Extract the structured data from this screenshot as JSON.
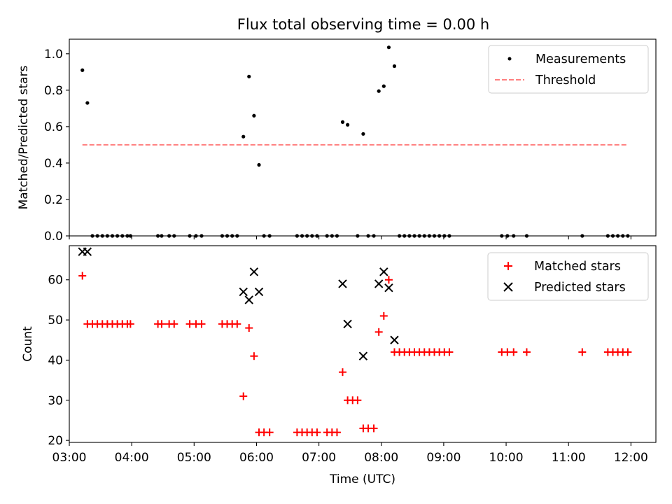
{
  "colors": {
    "measurement": "#000000",
    "threshold": "#ff7f7f",
    "matched": "#ff0000",
    "predicted": "#000000"
  },
  "chart_data": [
    {
      "type": "scatter",
      "title": "Flux total observing time = 0.00 h",
      "xlabel": "",
      "ylabel": "Matched/Predicted stars",
      "xlim": [
        3.0,
        12.4
      ],
      "ylim": [
        0.0,
        1.08
      ],
      "yticks": [
        0.0,
        0.2,
        0.4,
        0.6,
        0.8,
        1.0
      ],
      "ytick_labels": [
        "0.0",
        "0.2",
        "0.4",
        "0.6",
        "0.8",
        "1.0"
      ],
      "legend_position": "top-right",
      "legend": [
        "Measurements",
        "Threshold"
      ],
      "series": [
        {
          "name": "Measurements",
          "marker": "dot",
          "x": [
            3.21,
            3.29,
            3.37,
            3.45,
            3.53,
            3.61,
            3.69,
            3.77,
            3.85,
            3.93,
            3.98,
            4.42,
            4.48,
            4.6,
            4.68,
            4.93,
            5.03,
            5.12,
            5.45,
            5.53,
            5.61,
            5.69,
            5.79,
            5.88,
            5.96,
            6.04,
            6.12,
            6.21,
            6.65,
            6.73,
            6.81,
            6.89,
            6.97,
            7.13,
            7.21,
            7.29,
            7.38,
            7.46,
            7.62,
            7.71,
            7.79,
            7.88,
            7.96,
            8.04,
            8.12,
            8.21,
            8.29,
            8.37,
            8.45,
            8.53,
            8.61,
            8.69,
            8.77,
            8.85,
            8.93,
            9.01,
            9.09,
            9.93,
            10.02,
            10.12,
            10.33,
            11.22,
            11.63,
            11.71,
            11.79,
            11.87,
            11.95
          ],
          "y": [
            0.91,
            0.73,
            0.0,
            0.0,
            0.0,
            0.0,
            0.0,
            0.0,
            0.0,
            0.0,
            0.0,
            0.0,
            0.0,
            0.0,
            0.0,
            0.0,
            0.0,
            0.0,
            0.0,
            0.0,
            0.0,
            0.0,
            0.545,
            0.875,
            0.66,
            0.39,
            0.0,
            0.0,
            0.0,
            0.0,
            0.0,
            0.0,
            0.0,
            0.0,
            0.0,
            0.0,
            0.625,
            0.61,
            0.0,
            0.56,
            0.0,
            0.0,
            0.795,
            0.822,
            1.035,
            0.932,
            0.0,
            0.0,
            0.0,
            0.0,
            0.0,
            0.0,
            0.0,
            0.0,
            0.0,
            0.0,
            0.0,
            0.0,
            0.0,
            0.0,
            0.0,
            0.0,
            0.0,
            0.0,
            0.0,
            0.0,
            0.0
          ]
        },
        {
          "name": "Threshold",
          "marker": "dashed-line",
          "x": [
            3.21,
            11.95
          ],
          "y": [
            0.5,
            0.5
          ]
        }
      ]
    },
    {
      "type": "scatter",
      "title": "",
      "xlabel": "Time (UTC)",
      "ylabel": "Count",
      "xlim": [
        3.0,
        12.4
      ],
      "ylim": [
        19.5,
        68.5
      ],
      "xticks": [
        3,
        4,
        5,
        6,
        7,
        8,
        9,
        10,
        11,
        12
      ],
      "xtick_labels": [
        "03:00",
        "04:00",
        "05:00",
        "06:00",
        "07:00",
        "08:00",
        "09:00",
        "10:00",
        "11:00",
        "12:00"
      ],
      "yticks": [
        20,
        30,
        40,
        50,
        60
      ],
      "ytick_labels": [
        "20",
        "30",
        "40",
        "50",
        "60"
      ],
      "legend_position": "top-right",
      "legend": [
        "Matched stars",
        "Predicted stars"
      ],
      "series": [
        {
          "name": "Matched stars",
          "marker": "plus",
          "x": [
            3.21,
            3.29,
            3.37,
            3.45,
            3.53,
            3.61,
            3.69,
            3.77,
            3.85,
            3.93,
            3.98,
            4.42,
            4.48,
            4.6,
            4.68,
            4.93,
            5.03,
            5.12,
            5.45,
            5.53,
            5.61,
            5.69,
            5.79,
            5.88,
            5.96,
            6.04,
            6.12,
            6.21,
            6.65,
            6.73,
            6.81,
            6.89,
            6.97,
            7.13,
            7.21,
            7.29,
            7.38,
            7.46,
            7.54,
            7.62,
            7.71,
            7.79,
            7.88,
            7.96,
            8.04,
            8.12,
            8.21,
            8.29,
            8.37,
            8.45,
            8.53,
            8.61,
            8.69,
            8.77,
            8.85,
            8.93,
            9.01,
            9.09,
            9.93,
            10.02,
            10.12,
            10.33,
            11.22,
            11.63,
            11.71,
            11.79,
            11.87,
            11.95
          ],
          "y": [
            61,
            49,
            49,
            49,
            49,
            49,
            49,
            49,
            49,
            49,
            49,
            49,
            49,
            49,
            49,
            49,
            49,
            49,
            49,
            49,
            49,
            49,
            31,
            48,
            41,
            22,
            22,
            22,
            22,
            22,
            22,
            22,
            22,
            22,
            22,
            22,
            37,
            30,
            30,
            30,
            23,
            23,
            23,
            47,
            51,
            60,
            42,
            42,
            42,
            42,
            42,
            42,
            42,
            42,
            42,
            42,
            42,
            42,
            42,
            42,
            42,
            42,
            42,
            42,
            42,
            42,
            42,
            42
          ]
        },
        {
          "name": "Predicted stars",
          "marker": "x",
          "x": [
            3.21,
            3.29,
            5.79,
            5.88,
            5.96,
            6.04,
            7.38,
            7.46,
            7.71,
            7.96,
            8.04,
            8.12,
            8.21
          ],
          "y": [
            67,
            67,
            57,
            55,
            62,
            57,
            59,
            49,
            41,
            59,
            62,
            58,
            45
          ]
        }
      ]
    }
  ]
}
